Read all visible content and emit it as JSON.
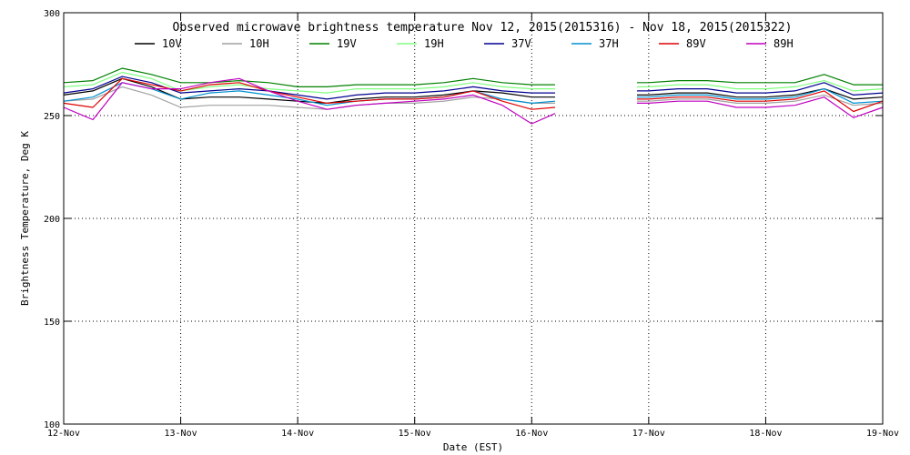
{
  "chart_data": {
    "type": "line",
    "title": "Observed microwave brightness temperature Nov 12, 2015(2015316) - Nov 18, 2015(2015322)",
    "xlabel": "Date (EST)",
    "ylabel": "Brightness Temperature, Deg K",
    "xlim": [
      0,
      7
    ],
    "ylim": [
      100,
      300
    ],
    "x_ticks": [
      {
        "value": 0,
        "label": "12-Nov"
      },
      {
        "value": 1,
        "label": "13-Nov"
      },
      {
        "value": 2,
        "label": "14-Nov"
      },
      {
        "value": 3,
        "label": "15-Nov"
      },
      {
        "value": 4,
        "label": "16-Nov"
      },
      {
        "value": 5,
        "label": "17-Nov"
      },
      {
        "value": 6,
        "label": "18-Nov"
      },
      {
        "value": 7,
        "label": "19-Nov"
      }
    ],
    "y_ticks": [
      {
        "value": 100,
        "label": "100"
      },
      {
        "value": 150,
        "label": "150"
      },
      {
        "value": 200,
        "label": "200"
      },
      {
        "value": 250,
        "label": "250"
      },
      {
        "value": 300,
        "label": "300"
      }
    ],
    "grid": true,
    "legend_position": "top",
    "x": [
      0,
      0.25,
      0.5,
      0.75,
      1.0,
      1.25,
      1.5,
      1.75,
      2.0,
      2.25,
      2.5,
      2.75,
      3.0,
      3.25,
      3.5,
      3.75,
      4.0,
      4.2,
      4.9,
      5.0,
      5.25,
      5.5,
      5.75,
      6.0,
      6.25,
      6.5,
      6.75,
      7.0
    ],
    "gap": {
      "from": 4.2,
      "to": 4.9
    },
    "series": [
      {
        "name": "10V",
        "color": "#000000",
        "values": [
          260,
          262,
          268,
          264,
          258,
          259,
          259,
          258,
          257,
          256,
          258,
          259,
          259,
          260,
          262,
          261,
          259,
          259,
          260,
          260,
          261,
          261,
          259,
          259,
          260,
          263,
          258,
          259
        ]
      },
      {
        "name": "10H",
        "color": "#a0a0a0",
        "values": [
          257,
          258,
          264,
          260,
          254,
          255,
          255,
          255,
          254,
          253,
          255,
          256,
          256,
          257,
          259,
          258,
          256,
          256,
          257,
          257,
          258,
          258,
          256,
          256,
          257,
          260,
          255,
          256
        ]
      },
      {
        "name": "19V",
        "color": "#008000",
        "values": [
          266,
          267,
          273,
          270,
          266,
          266,
          267,
          266,
          264,
          264,
          265,
          265,
          265,
          266,
          268,
          266,
          265,
          265,
          266,
          266,
          267,
          267,
          266,
          266,
          266,
          270,
          265,
          265
        ]
      },
      {
        "name": "19H",
        "color": "#80ff80",
        "values": [
          264,
          265,
          271,
          268,
          262,
          264,
          265,
          263,
          262,
          261,
          263,
          263,
          263,
          264,
          266,
          264,
          263,
          263,
          264,
          264,
          265,
          265,
          263,
          263,
          264,
          267,
          262,
          263
        ]
      },
      {
        "name": "37V",
        "color": "#000090",
        "values": [
          261,
          263,
          269,
          266,
          261,
          262,
          263,
          262,
          260,
          258,
          260,
          261,
          261,
          262,
          264,
          262,
          261,
          261,
          262,
          262,
          263,
          263,
          261,
          261,
          262,
          266,
          260,
          261
        ]
      },
      {
        "name": "37H",
        "color": "#0090d0",
        "values": [
          257,
          259,
          266,
          263,
          258,
          261,
          262,
          260,
          258,
          255,
          257,
          258,
          258,
          259,
          262,
          258,
          256,
          257,
          259,
          259,
          260,
          260,
          258,
          258,
          259,
          263,
          256,
          257
        ]
      },
      {
        "name": "89V",
        "color": "#e00000",
        "values": [
          256,
          254,
          268,
          265,
          262,
          265,
          266,
          262,
          259,
          256,
          257,
          258,
          258,
          259,
          262,
          257,
          253,
          254,
          258,
          258,
          259,
          259,
          257,
          257,
          258,
          262,
          252,
          257
        ]
      },
      {
        "name": "89H",
        "color": "#c000c0",
        "values": [
          254,
          248,
          266,
          263,
          263,
          266,
          268,
          262,
          257,
          253,
          255,
          256,
          257,
          258,
          260,
          255,
          246,
          251,
          256,
          256,
          257,
          257,
          254,
          254,
          255,
          259,
          249,
          254
        ]
      }
    ]
  }
}
